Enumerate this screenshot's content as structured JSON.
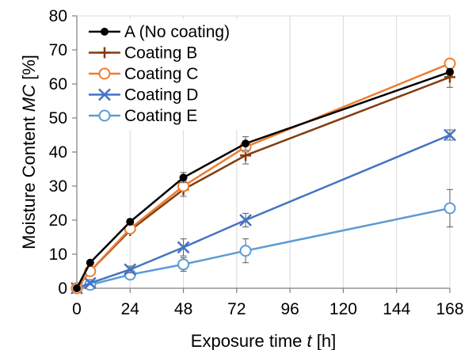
{
  "chart_data": {
    "type": "line",
    "xlabel": {
      "prefix": "Exposure time ",
      "var": "t",
      "suffix": " [h]"
    },
    "ylabel": {
      "prefix": "Moisture Content ",
      "var": "MC",
      "suffix": " [%]"
    },
    "xlim": [
      0,
      168
    ],
    "ylim": [
      0,
      80
    ],
    "xticks": [
      0,
      24,
      48,
      72,
      96,
      120,
      144,
      168
    ],
    "yticks": [
      0,
      10,
      20,
      30,
      40,
      50,
      60,
      70,
      80
    ],
    "grid": "vertical",
    "legend": "top-left",
    "series": [
      {
        "name": "A (No coating)",
        "color": "#000000",
        "marker": "filled-circle",
        "x": [
          0,
          6,
          24,
          48,
          76,
          168
        ],
        "y": [
          0,
          7.5,
          19.5,
          32.5,
          42.5,
          63.5
        ],
        "err": [
          0,
          0.5,
          0.8,
          1.5,
          2.0,
          1.0
        ]
      },
      {
        "name": "Coating B",
        "color": "#843C0C",
        "marker": "plus",
        "x": [
          0,
          6,
          24,
          48,
          76,
          168
        ],
        "y": [
          0,
          5.0,
          17.0,
          29.0,
          39.0,
          62.0
        ],
        "err": [
          0,
          0.5,
          0.8,
          2.0,
          2.5,
          3.0
        ]
      },
      {
        "name": "Coating C",
        "color": "#ED7D31",
        "marker": "open-circle",
        "x": [
          0,
          6,
          24,
          48,
          76,
          168
        ],
        "y": [
          0,
          5.0,
          17.5,
          30.0,
          41.5,
          66.0
        ],
        "err": [
          0,
          0.5,
          0.8,
          1.5,
          1.5,
          1.0
        ]
      },
      {
        "name": "Coating D",
        "color": "#4472C4",
        "marker": "cross",
        "x": [
          0,
          6,
          24,
          48,
          76,
          168
        ],
        "y": [
          0,
          1.5,
          5.5,
          12.0,
          20.0,
          45.0
        ],
        "err": [
          0,
          0.5,
          1.0,
          2.5,
          2.0,
          1.5
        ]
      },
      {
        "name": "Coating E",
        "color": "#5B9BD5",
        "marker": "open-circle",
        "x": [
          0,
          6,
          24,
          48,
          76,
          168
        ],
        "y": [
          0,
          1.0,
          4.0,
          7.0,
          11.0,
          23.5
        ],
        "err": [
          0,
          0.5,
          0.8,
          2.0,
          3.5,
          5.5
        ]
      }
    ]
  }
}
